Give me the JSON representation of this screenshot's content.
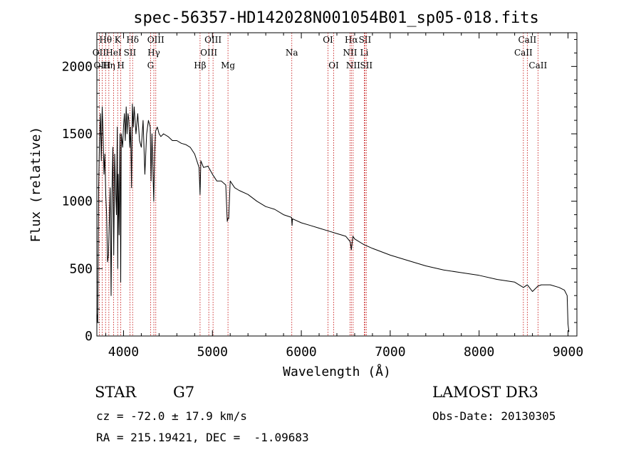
{
  "chart_data": {
    "type": "line",
    "title": "spec-56357-HD142028N001054B01_sp05-018.fits",
    "xlabel": "Wavelength (Å)",
    "ylabel": "Flux (relative)",
    "xlim": [
      3700,
      9100
    ],
    "ylim": [
      0,
      2250
    ],
    "xticks": [
      4000,
      5000,
      6000,
      7000,
      8000,
      9000
    ],
    "yticks": [
      0,
      500,
      1000,
      1500,
      2000
    ],
    "series": [
      {
        "name": "spectrum",
        "x": [
          3700,
          3710,
          3720,
          3730,
          3740,
          3750,
          3760,
          3770,
          3780,
          3790,
          3800,
          3810,
          3820,
          3830,
          3840,
          3850,
          3860,
          3870,
          3880,
          3890,
          3900,
          3910,
          3920,
          3930,
          3935,
          3940,
          3950,
          3960,
          3968,
          3975,
          3990,
          4000,
          4010,
          4020,
          4030,
          4040,
          4050,
          4060,
          4070,
          4080,
          4090,
          4100,
          4110,
          4120,
          4140,
          4160,
          4180,
          4200,
          4220,
          4240,
          4260,
          4280,
          4300,
          4310,
          4320,
          4340,
          4350,
          4360,
          4380,
          4400,
          4420,
          4450,
          4500,
          4550,
          4600,
          4650,
          4700,
          4750,
          4800,
          4850,
          4861,
          4870,
          4900,
          4950,
          5000,
          5050,
          5100,
          5150,
          5167,
          5172,
          5183,
          5200,
          5250,
          5300,
          5400,
          5500,
          5600,
          5700,
          5800,
          5890,
          5896,
          5900,
          6000,
          6100,
          6200,
          6300,
          6400,
          6500,
          6550,
          6563,
          6580,
          6600,
          6700,
          6800,
          7000,
          7200,
          7400,
          7600,
          7800,
          8000,
          8200,
          8400,
          8498,
          8542,
          8600,
          8662,
          8700,
          8800,
          8900,
          8960,
          8990,
          9000,
          9010
        ],
        "values": [
          170,
          100,
          1100,
          1450,
          1650,
          1300,
          1700,
          1500,
          1200,
          1350,
          1050,
          900,
          550,
          600,
          850,
          1100,
          300,
          1050,
          1400,
          600,
          1350,
          1100,
          900,
          1550,
          500,
          1200,
          750,
          1500,
          400,
          1500,
          1400,
          1550,
          1650,
          1450,
          1700,
          1500,
          1650,
          1600,
          1400,
          1550,
          1100,
          1720,
          1550,
          1700,
          1500,
          1650,
          1450,
          1400,
          1600,
          1200,
          1500,
          1600,
          1550,
          1150,
          1500,
          1000,
          1350,
          1520,
          1550,
          1500,
          1480,
          1500,
          1480,
          1450,
          1450,
          1430,
          1420,
          1400,
          1350,
          1250,
          1050,
          1300,
          1250,
          1260,
          1200,
          1150,
          1150,
          1120,
          850,
          870,
          870,
          1150,
          1100,
          1080,
          1050,
          1000,
          960,
          940,
          900,
          880,
          820,
          870,
          840,
          820,
          800,
          780,
          760,
          740,
          700,
          640,
          740,
          720,
          680,
          650,
          600,
          560,
          520,
          490,
          470,
          450,
          420,
          400,
          360,
          380,
          330,
          370,
          380,
          380,
          360,
          340,
          300,
          90,
          30
        ]
      }
    ],
    "spectral_lines": [
      {
        "label": "Hθ",
        "wavelength": 3798,
        "row": 1
      },
      {
        "label": "OII",
        "wavelength": 3727,
        "row": 2
      },
      {
        "label": "OIII",
        "wavelength": 3760,
        "row": 3
      },
      {
        "label": "K",
        "wavelength": 3934,
        "row": 1
      },
      {
        "label": "HeI",
        "wavelength": 3889,
        "row": 2
      },
      {
        "label": "Hη",
        "wavelength": 3835,
        "row": 3
      },
      {
        "label": "Hδ",
        "wavelength": 4102,
        "row": 1
      },
      {
        "label": "SII",
        "wavelength": 4072,
        "row": 2
      },
      {
        "label": "H",
        "wavelength": 3969,
        "row": 3
      },
      {
        "label": "OIII",
        "wavelength": 4363,
        "row": 1
      },
      {
        "label": "Hγ",
        "wavelength": 4341,
        "row": 2
      },
      {
        "label": "G",
        "wavelength": 4304,
        "row": 3
      },
      {
        "label": "OIII",
        "wavelength": 5007,
        "row": 1
      },
      {
        "label": "OIII",
        "wavelength": 4959,
        "row": 2
      },
      {
        "label": "Hβ",
        "wavelength": 4861,
        "row": 3
      },
      {
        "label": "Mg",
        "wavelength": 5175,
        "row": 3
      },
      {
        "label": "Na",
        "wavelength": 5893,
        "row": 2
      },
      {
        "label": "OI",
        "wavelength": 6300,
        "row": 1
      },
      {
        "label": "OI",
        "wavelength": 6364,
        "row": 3
      },
      {
        "label": "Hα",
        "wavelength": 6563,
        "row": 1
      },
      {
        "label": "NII",
        "wavelength": 6548,
        "row": 2
      },
      {
        "label": "NII",
        "wavelength": 6583,
        "row": 3
      },
      {
        "label": "SII",
        "wavelength": 6716,
        "row": 1
      },
      {
        "label": "Li",
        "wavelength": 6708,
        "row": 2
      },
      {
        "label": "SII",
        "wavelength": 6731,
        "row": 3
      },
      {
        "label": "CaII",
        "wavelength": 8542,
        "row": 1
      },
      {
        "label": "CaII",
        "wavelength": 8498,
        "row": 2
      },
      {
        "label": "CaII",
        "wavelength": 8662,
        "row": 3
      }
    ],
    "grid": false,
    "legend": "none"
  },
  "info": {
    "class": "STAR",
    "subclass": "G7",
    "survey": "LAMOST DR3",
    "redshift": "cz = -72.0 ± 17.9 km/s",
    "obs_date": "Obs-Date: 20130305",
    "coords": "RA = 215.19421, DEC =  -1.09683"
  }
}
